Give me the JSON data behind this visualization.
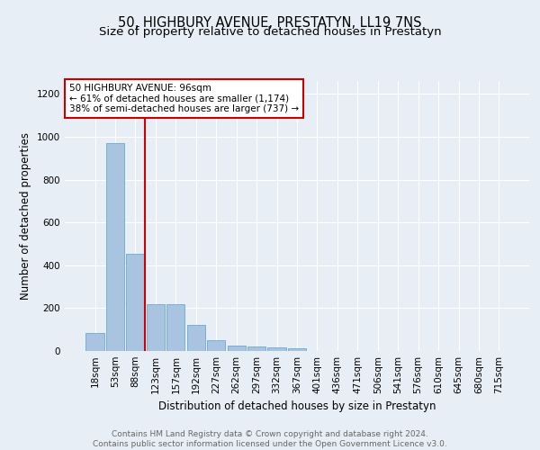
{
  "title": "50, HIGHBURY AVENUE, PRESTATYN, LL19 7NS",
  "subtitle": "Size of property relative to detached houses in Prestatyn",
  "xlabel": "Distribution of detached houses by size in Prestatyn",
  "ylabel": "Number of detached properties",
  "categories": [
    "18sqm",
    "53sqm",
    "88sqm",
    "123sqm",
    "157sqm",
    "192sqm",
    "227sqm",
    "262sqm",
    "297sqm",
    "332sqm",
    "367sqm",
    "401sqm",
    "436sqm",
    "471sqm",
    "506sqm",
    "541sqm",
    "576sqm",
    "610sqm",
    "645sqm",
    "680sqm",
    "715sqm"
  ],
  "values": [
    85,
    970,
    455,
    218,
    218,
    120,
    50,
    25,
    22,
    18,
    12,
    0,
    0,
    0,
    0,
    0,
    0,
    0,
    0,
    0,
    0
  ],
  "bar_color": "#a8c4e0",
  "bar_edge_color": "#5a9ec9",
  "highlight_bar_idx": 2,
  "highlight_color": "#cc0000",
  "annotation_text": "50 HIGHBURY AVENUE: 96sqm\n← 61% of detached houses are smaller (1,174)\n38% of semi-detached houses are larger (737) →",
  "annotation_box_color": "#ffffff",
  "annotation_box_edge": "#cc0000",
  "ylim": [
    0,
    1260
  ],
  "yticks": [
    0,
    200,
    400,
    600,
    800,
    1000,
    1200
  ],
  "footer_text": "Contains HM Land Registry data © Crown copyright and database right 2024.\nContains public sector information licensed under the Open Government Licence v3.0.",
  "bg_color": "#e8eef5",
  "plot_bg_color": "#e8eef5",
  "grid_color": "#ffffff",
  "title_fontsize": 10.5,
  "subtitle_fontsize": 9.5,
  "axis_label_fontsize": 8.5,
  "tick_fontsize": 7.5,
  "annotation_fontsize": 7.5,
  "footer_fontsize": 6.5
}
